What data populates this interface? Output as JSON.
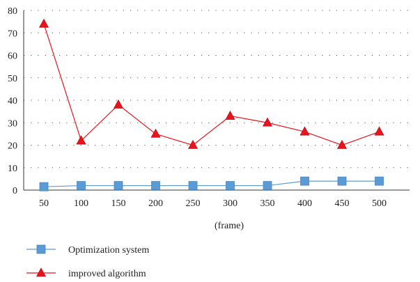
{
  "chart_data": {
    "type": "line",
    "x": [
      50,
      100,
      150,
      200,
      250,
      300,
      350,
      400,
      450,
      500
    ],
    "xlabel": "(frame)",
    "ylabel": "",
    "ylim": [
      0,
      80
    ],
    "yticks": [
      0,
      10,
      20,
      30,
      40,
      50,
      60,
      70,
      80
    ],
    "grid": "horizontal-dotted",
    "legend": "bottom-left",
    "series": [
      {
        "name": "Optimization system",
        "values": [
          1.5,
          2,
          2,
          2,
          2,
          2,
          2,
          4,
          4,
          4
        ],
        "color": "#5b9bd5",
        "marker": "square"
      },
      {
        "name": "improved algorithm",
        "values": [
          74,
          22,
          38,
          25,
          20,
          33,
          30,
          26,
          20,
          26
        ],
        "color": "#e8141c",
        "marker": "triangle"
      }
    ]
  }
}
